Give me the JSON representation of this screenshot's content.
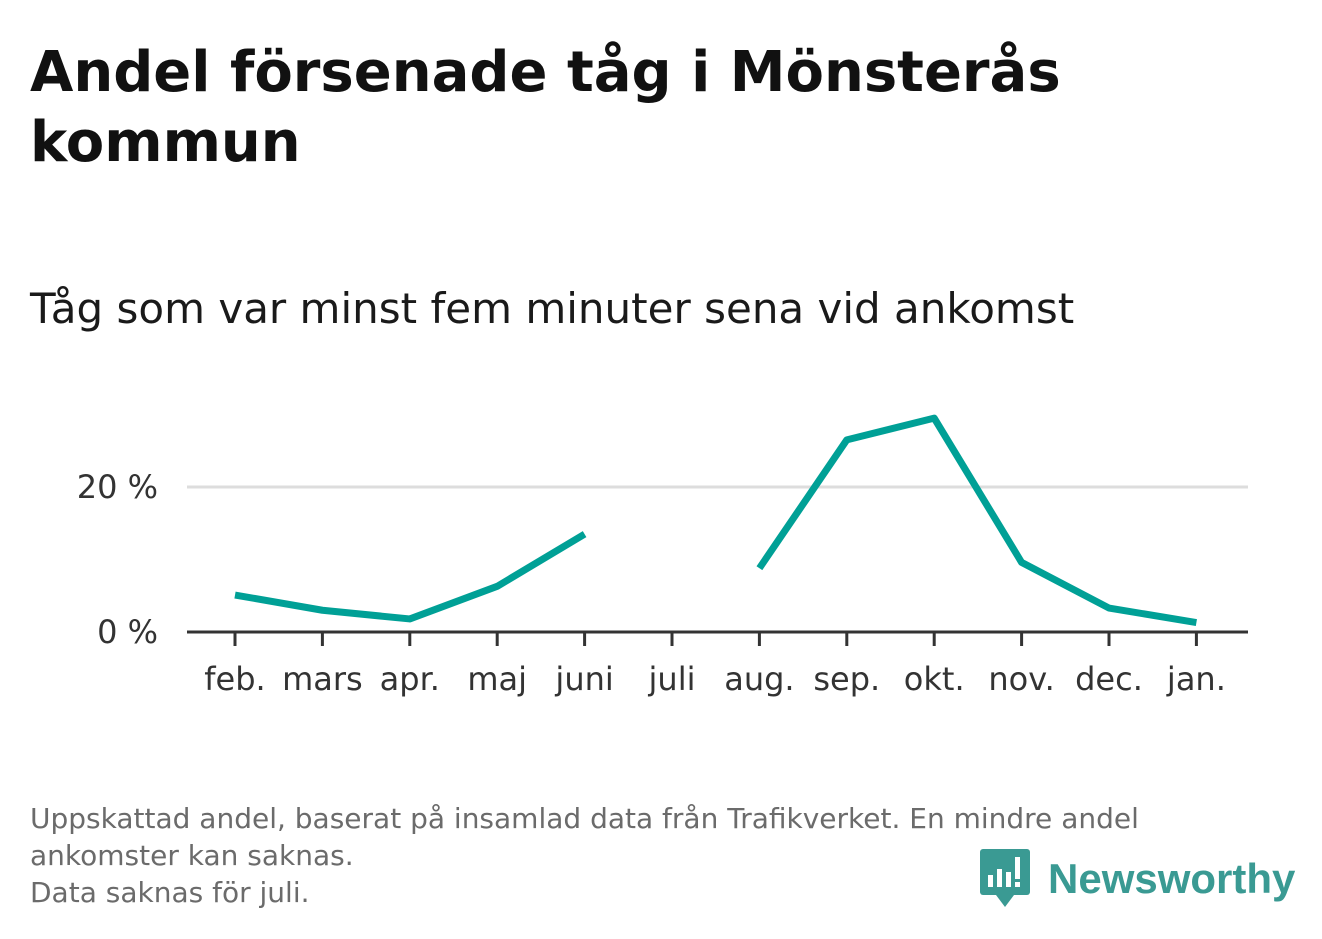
{
  "title": "Andel försenade tåg i Mönsterås kommun",
  "subtitle": "Tåg som var minst fem minuter sena vid ankomst",
  "footnote": {
    "line1": "Uppskattad andel, baserat på insamlad data från Trafikverket. En mindre andel",
    "line2": "ankomster kan saknas.",
    "line3": "Data saknas för juli."
  },
  "brand": {
    "name": "Newsworthy",
    "icon": "newsworthy-logo-icon",
    "color": "#3a9a93"
  },
  "chart_data": {
    "type": "line",
    "categories": [
      "feb.",
      "mars",
      "apr.",
      "maj",
      "juni",
      "juli",
      "aug.",
      "sep.",
      "okt.",
      "nov.",
      "dec.",
      "jan."
    ],
    "series": [
      {
        "values": [
          5.1,
          3.0,
          1.8,
          6.3,
          13.5,
          null,
          8.8,
          26.5,
          29.5,
          9.6,
          3.3,
          1.3
        ],
        "color": "#00a096"
      }
    ],
    "ylim": [
      0,
      30
    ],
    "yticks": [
      {
        "value": 0,
        "label": "0 %"
      },
      {
        "value": 20,
        "label": "20 %"
      }
    ],
    "xlabel": "",
    "ylabel": "",
    "grid": true,
    "gridline_color": "#dddddd",
    "axis_color": "#333333"
  }
}
